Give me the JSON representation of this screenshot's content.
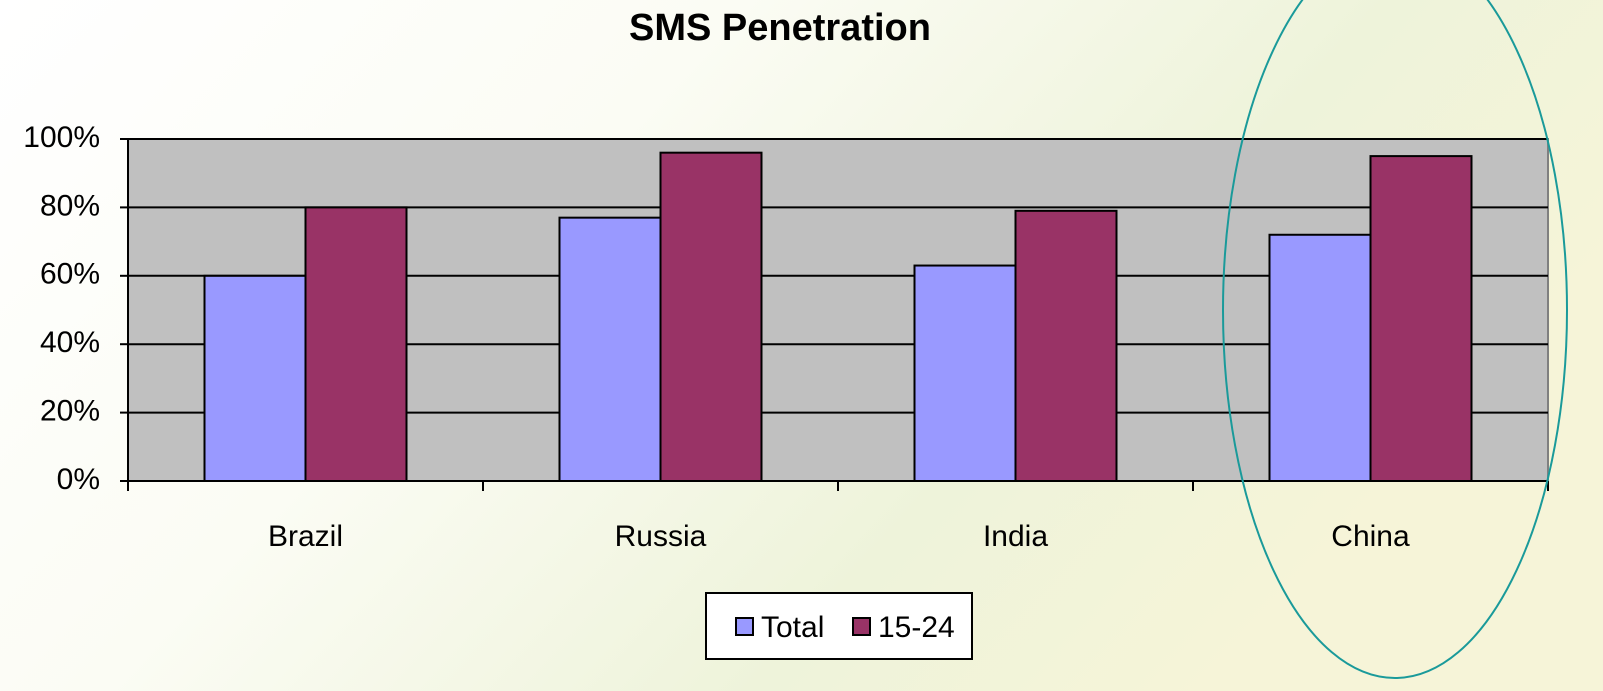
{
  "chart_data": {
    "type": "bar",
    "title": "SMS Penetration",
    "categories": [
      "Brazil",
      "Russia",
      "India",
      "China"
    ],
    "series": [
      {
        "name": "Total",
        "color": "#9999ff",
        "values": [
          60,
          77,
          63,
          72
        ]
      },
      {
        "name": "15-24",
        "color": "#993366",
        "values": [
          80,
          96,
          79,
          95
        ]
      }
    ],
    "ylim": [
      0,
      100
    ],
    "yticks": [
      {
        "value": 0,
        "label": "0%"
      },
      {
        "value": 20,
        "label": "20%"
      },
      {
        "value": 40,
        "label": "40%"
      },
      {
        "value": 60,
        "label": "60%"
      },
      {
        "value": 80,
        "label": "80%"
      },
      {
        "value": 100,
        "label": "100%"
      }
    ],
    "grid": true,
    "legend": "bottom"
  }
}
